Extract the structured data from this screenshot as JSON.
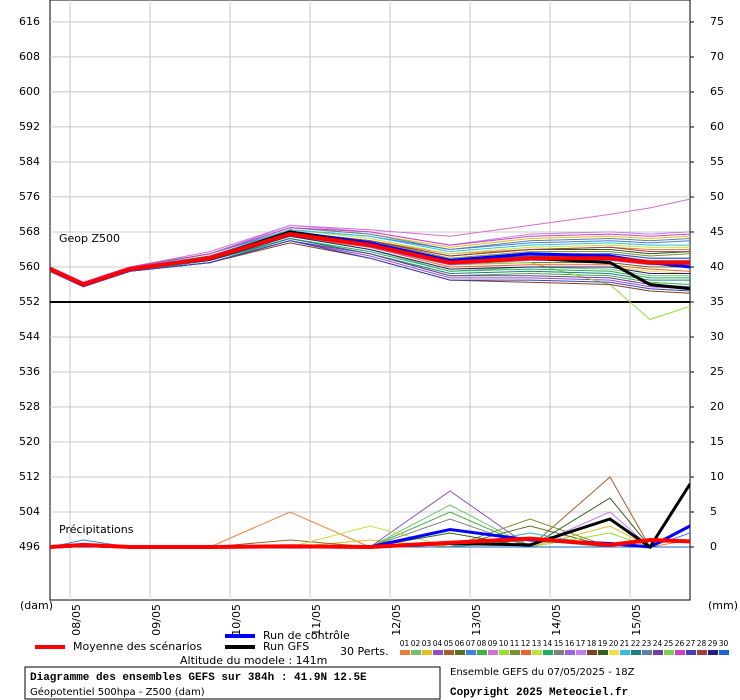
{
  "chart_data": {
    "type": "line",
    "title": "Diagramme des ensembles GEFS sur 384h : 41.9N 12.5E",
    "subtitle": "Géopotentiel 500hpa - Z500 (dam)",
    "geo_label": "Geop Z500",
    "precip_label": "Précipitations",
    "y_label": "(dam)",
    "y2_label": "(mm)",
    "perts_label": "30 Perts.",
    "altitude": "Altitude du modele : 141m",
    "run_info": "Ensemble GEFS du 07/05/2025 - 18Z",
    "copyright": "Copyright 2025 Meteociel.fr",
    "ref_line": 552,
    "grid": true,
    "x": [
      0,
      10,
      24,
      48,
      72,
      96,
      120,
      144,
      168,
      180,
      192
    ],
    "xlim": [
      0,
      192
    ],
    "xticks": [
      {
        "value": 6,
        "label": "08/05"
      },
      {
        "value": 30,
        "label": "09/05"
      },
      {
        "value": 54,
        "label": "10/05"
      },
      {
        "value": 78,
        "label": "11/05"
      },
      {
        "value": 102,
        "label": "12/05"
      },
      {
        "value": 126,
        "label": "13/05"
      },
      {
        "value": 150,
        "label": "14/05"
      },
      {
        "value": 174,
        "label": "15/05"
      }
    ],
    "ylim": [
      483.9,
      621
    ],
    "yticks": [
      496,
      504,
      512,
      520,
      528,
      536,
      544,
      552,
      560,
      568,
      576,
      584,
      592,
      600,
      608,
      616
    ],
    "y2lim": [
      -7.57,
      78.14
    ],
    "y2ticks": [
      0,
      5,
      10,
      15,
      20,
      25,
      30,
      35,
      40,
      45,
      50,
      55,
      60,
      65,
      70,
      75
    ],
    "series": [
      {
        "name": "Moyenne des scénarios",
        "color": "#ff0000",
        "values": [
          559.5,
          556,
          559.5,
          562,
          567.5,
          565,
          561,
          562,
          562,
          561,
          561
        ],
        "precip": [
          0,
          0.3,
          0,
          0,
          0.1,
          0,
          0.6,
          1.2,
          0.3,
          1,
          0.8
        ]
      },
      {
        "name": "Run de contrôle",
        "color": "#0000ff",
        "values": [
          559.5,
          556,
          559.5,
          562,
          568,
          565.5,
          561.5,
          563,
          562.5,
          561,
          560
        ],
        "precip": [
          0,
          0.2,
          0,
          0,
          0,
          0,
          2.5,
          1,
          0.5,
          0,
          3
        ]
      },
      {
        "name": "Run GFS",
        "color": "#000000",
        "values": [
          559.5,
          556,
          559.5,
          562,
          568,
          565,
          561,
          562,
          561,
          556,
          555
        ],
        "precip": [
          0,
          0.2,
          0,
          0,
          0,
          0,
          0.5,
          0.3,
          4,
          0,
          9
        ]
      },
      {
        "name": "01",
        "color": "#e8803a",
        "values": [
          559.5,
          556,
          560,
          562.5,
          568,
          566,
          563,
          564,
          564.5,
          564,
          564
        ],
        "precip": [
          0,
          0,
          0,
          0,
          5,
          0,
          0,
          2,
          0,
          0,
          1
        ]
      },
      {
        "name": "02",
        "color": "#70c070",
        "values": [
          559.5,
          556,
          559,
          561.5,
          567,
          564,
          559,
          560,
          559.5,
          558,
          558
        ],
        "precip": [
          0,
          0.5,
          0,
          0,
          0,
          0,
          6,
          0,
          0,
          0,
          0
        ]
      },
      {
        "name": "03",
        "color": "#e0c020",
        "values": [
          560,
          556.5,
          560,
          563,
          569,
          567.5,
          564.5,
          566.5,
          567,
          566.5,
          567
        ],
        "precip": [
          0,
          0,
          0,
          0,
          0,
          1,
          0,
          0,
          3,
          0,
          0
        ]
      },
      {
        "name": "04",
        "color": "#9050c0",
        "values": [
          559,
          555.5,
          559,
          561,
          566,
          562.5,
          557.5,
          557.5,
          557,
          555.5,
          555
        ],
        "precip": [
          0,
          0,
          0,
          0,
          0,
          0,
          8,
          0,
          0,
          0,
          0
        ]
      },
      {
        "name": "05",
        "color": "#a06030",
        "values": [
          559.5,
          556,
          559.5,
          562,
          568,
          565.5,
          561.5,
          563,
          563,
          562,
          562
        ],
        "precip": [
          0,
          0,
          0,
          0,
          1,
          0,
          0,
          0,
          10,
          0,
          0
        ]
      },
      {
        "name": "06",
        "color": "#607020",
        "values": [
          559.5,
          556,
          559.5,
          562,
          567,
          564.5,
          560.5,
          561,
          561,
          560,
          560
        ],
        "precip": [
          0,
          0,
          0,
          0,
          0,
          0,
          0,
          3,
          0,
          0,
          0
        ]
      },
      {
        "name": "07",
        "color": "#4080e0",
        "values": [
          560,
          556,
          560,
          563,
          568.5,
          567,
          564,
          565.5,
          566,
          565.5,
          566
        ],
        "precip": [
          0,
          1,
          0,
          0,
          0,
          0,
          0,
          0,
          0,
          0,
          2
        ]
      },
      {
        "name": "08",
        "color": "#40b040",
        "values": [
          559,
          556,
          559,
          561,
          566.5,
          563,
          558,
          558.5,
          558,
          556.5,
          556
        ],
        "precip": [
          0,
          0,
          0,
          0,
          0,
          0,
          5,
          0,
          0,
          0,
          0
        ]
      },
      {
        "name": "09",
        "color": "#d070d0",
        "values": [
          560,
          556.5,
          560,
          563.5,
          569.5,
          568.5,
          567,
          569.5,
          572,
          573.5,
          575.5
        ],
        "precip": [
          0,
          0,
          0,
          0,
          0,
          0,
          0,
          0,
          0,
          0,
          0
        ]
      },
      {
        "name": "10",
        "color": "#90e030",
        "values": [
          559.5,
          556,
          559.5,
          562,
          567,
          564.5,
          560.5,
          561,
          556,
          548,
          551
        ],
        "precip": [
          0,
          0,
          0,
          0,
          0,
          0,
          0,
          0,
          2,
          0,
          0
        ]
      },
      {
        "name": "11",
        "color": "#809030",
        "values": [
          559.5,
          556,
          559.5,
          562.5,
          568,
          566,
          562,
          563.5,
          563.5,
          562.5,
          563
        ],
        "precip": [
          0,
          0,
          0,
          0,
          0,
          0,
          0,
          4,
          0,
          0,
          0
        ]
      },
      {
        "name": "12",
        "color": "#f06030",
        "values": [
          559.5,
          556,
          559.5,
          561.5,
          567,
          564.5,
          560,
          560.5,
          560.5,
          559.5,
          559
        ],
        "precip": [
          0,
          0,
          0,
          0,
          0,
          0,
          0,
          0,
          0,
          0,
          3
        ]
      },
      {
        "name": "13",
        "color": "#c0e040",
        "values": [
          559.5,
          556,
          560,
          562.5,
          568.5,
          566.5,
          563,
          564.5,
          565,
          564.5,
          564.5
        ],
        "precip": [
          0,
          0,
          0,
          0,
          0,
          3,
          0,
          0,
          0,
          0,
          0
        ]
      },
      {
        "name": "14",
        "color": "#20b060",
        "values": [
          559.5,
          556,
          559,
          561.5,
          566.5,
          563.5,
          559,
          559.5,
          559,
          557.5,
          557.5
        ],
        "precip": [
          0,
          0,
          0,
          0,
          0,
          0,
          0,
          1,
          0,
          0,
          0
        ]
      },
      {
        "name": "15",
        "color": "#808080",
        "values": [
          559.5,
          556,
          559.5,
          562,
          567.5,
          565.5,
          561.5,
          562.5,
          562.5,
          561.5,
          561.5
        ],
        "precip": [
          0,
          0,
          0,
          0,
          0,
          0,
          4,
          0,
          0,
          0,
          0
        ]
      },
      {
        "name": "16",
        "color": "#a060e0",
        "values": [
          559.5,
          556,
          559.5,
          562,
          567.5,
          564.5,
          560.5,
          561.5,
          561.5,
          560.5,
          560.5
        ],
        "precip": [
          0,
          0,
          0,
          0,
          0,
          0,
          0,
          0,
          0,
          0,
          0
        ]
      },
      {
        "name": "17",
        "color": "#c080f0",
        "values": [
          560,
          556.5,
          560,
          563,
          569.5,
          568,
          565,
          567.5,
          568,
          567.5,
          568
        ],
        "precip": [
          0,
          0,
          0,
          0,
          0,
          0,
          0,
          0,
          5,
          0,
          0
        ]
      },
      {
        "name": "18",
        "color": "#804020",
        "values": [
          559,
          555.5,
          559,
          561,
          565.5,
          562,
          557,
          556.5,
          556,
          554.5,
          554
        ],
        "precip": [
          0,
          0,
          0,
          0,
          0,
          0,
          0,
          0,
          0,
          0,
          0
        ]
      },
      {
        "name": "19",
        "color": "#306020",
        "values": [
          559.5,
          556,
          559.5,
          562.5,
          568,
          566,
          562.5,
          564,
          564,
          563,
          563.5
        ],
        "precip": [
          0,
          0,
          0,
          0,
          0,
          0,
          2,
          0,
          7,
          0,
          0
        ]
      },
      {
        "name": "20",
        "color": "#f0e040",
        "values": [
          559.5,
          556,
          559.5,
          561.5,
          567,
          564,
          559.5,
          560,
          560,
          559,
          558.5
        ],
        "precip": [
          0,
          0,
          0,
          0,
          0,
          0,
          0,
          0,
          0,
          0,
          0
        ]
      },
      {
        "name": "21",
        "color": "#30c0e0",
        "values": [
          559.5,
          556,
          560,
          562.5,
          568.5,
          567,
          563.5,
          565,
          565.5,
          565,
          565
        ],
        "precip": [
          0,
          0,
          0,
          0,
          0,
          0,
          0,
          2,
          0,
          0,
          0
        ]
      },
      {
        "name": "22",
        "color": "#208080",
        "values": [
          559.5,
          556,
          559,
          561.5,
          566.5,
          563,
          558.5,
          559,
          558.5,
          557,
          557
        ],
        "precip": [
          0,
          0,
          0,
          0,
          0,
          0,
          0,
          0,
          0,
          0,
          0
        ]
      },
      {
        "name": "23",
        "color": "#6080a0",
        "values": [
          560,
          556.5,
          560,
          563,
          569,
          567.5,
          564,
          566,
          566.5,
          566,
          566.5
        ],
        "precip": [
          0,
          0,
          0,
          0,
          0,
          0,
          0,
          0,
          0,
          0,
          0
        ]
      },
      {
        "name": "24",
        "color": "#7040a0",
        "values": [
          559,
          555.5,
          559,
          561,
          566,
          563,
          558,
          558,
          557.5,
          556,
          555.5
        ],
        "precip": [
          0,
          0,
          0,
          0,
          0,
          0,
          0,
          0,
          0,
          0,
          0
        ]
      },
      {
        "name": "25",
        "color": "#80d050",
        "values": [
          559.5,
          556,
          559.5,
          562,
          567.5,
          565,
          561,
          562,
          562,
          561,
          561
        ],
        "precip": [
          0,
          0,
          0,
          0,
          0,
          0,
          0,
          0,
          0,
          0,
          0
        ]
      },
      {
        "name": "26",
        "color": "#d040c0",
        "values": [
          560,
          556.5,
          560,
          563,
          569,
          568,
          565,
          567,
          567.5,
          567,
          567.5
        ],
        "precip": [
          0,
          0,
          0,
          0,
          0,
          0,
          0,
          0,
          0,
          0,
          0
        ]
      },
      {
        "name": "27",
        "color": "#4040c0",
        "values": [
          559,
          555.5,
          559,
          561,
          566,
          562,
          557,
          557,
          556.5,
          555,
          554.5
        ],
        "precip": [
          0,
          0,
          0,
          0,
          0,
          0,
          0,
          0,
          0,
          0,
          0
        ]
      },
      {
        "name": "28",
        "color": "#a04040",
        "values": [
          559.5,
          556,
          559.5,
          562.5,
          568,
          566,
          562.5,
          564,
          564.5,
          563.5,
          563.5
        ],
        "precip": [
          0,
          0,
          0,
          0,
          0,
          0,
          0,
          0,
          0,
          0,
          0
        ]
      },
      {
        "name": "29",
        "color": "#202080",
        "values": [
          559.5,
          556,
          559.5,
          561.5,
          567,
          564,
          559.5,
          560,
          560,
          558.5,
          558.5
        ],
        "precip": [
          0,
          0,
          0,
          0,
          0,
          0,
          0,
          0,
          0,
          0,
          0
        ]
      },
      {
        "name": "30",
        "color": "#2060d0",
        "values": [
          559.5,
          556,
          559.5,
          562,
          567.5,
          565.5,
          561.5,
          562.5,
          563,
          562,
          562
        ],
        "precip": [
          0,
          0,
          0,
          0,
          0,
          0,
          0,
          0,
          0,
          0,
          0
        ]
      }
    ]
  }
}
